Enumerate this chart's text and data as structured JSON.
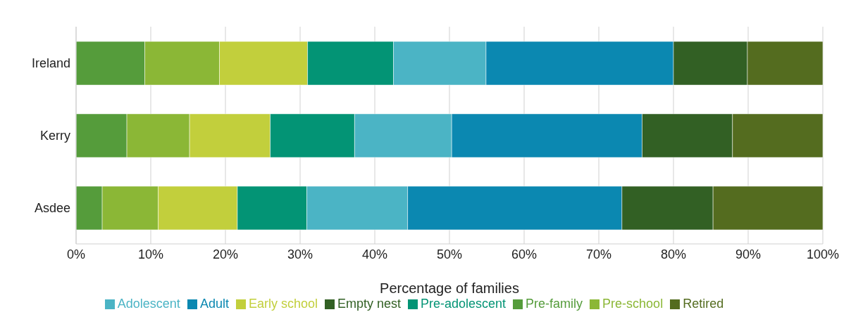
{
  "chart_data": {
    "type": "bar",
    "orientation": "horizontal",
    "stacked": true,
    "xlabel": "Percentage of families",
    "categories": [
      "Ireland",
      "Kerry",
      "Asdee"
    ],
    "series": [
      {
        "name": "Pre-family",
        "color": "#559c3b",
        "values": [
          9.2,
          6.8,
          3.5
        ]
      },
      {
        "name": "Pre-school",
        "color": "#8bb736",
        "values": [
          10.0,
          8.4,
          7.5
        ]
      },
      {
        "name": "Early school",
        "color": "#c2cf3c",
        "values": [
          11.8,
          10.8,
          10.6
        ]
      },
      {
        "name": "Pre-adolescent",
        "color": "#039475",
        "values": [
          11.5,
          11.3,
          9.3
        ]
      },
      {
        "name": "Adolescent",
        "color": "#4bb4c5",
        "values": [
          12.4,
          13.0,
          13.5
        ]
      },
      {
        "name": "Adult",
        "color": "#0b88b1",
        "values": [
          25.1,
          25.5,
          28.7
        ]
      },
      {
        "name": "Empty nest",
        "color": "#326024",
        "values": [
          9.9,
          12.1,
          12.2
        ]
      },
      {
        "name": "Retired",
        "color": "#546c1f",
        "values": [
          10.1,
          12.1,
          14.7
        ]
      }
    ],
    "xlim": [
      0,
      100
    ],
    "xticks": [
      {
        "value": 0,
        "label": "0%"
      },
      {
        "value": 10,
        "label": "10%"
      },
      {
        "value": 20,
        "label": "20%"
      },
      {
        "value": 30,
        "label": "30%"
      },
      {
        "value": 40,
        "label": "40%"
      },
      {
        "value": 50,
        "label": "50%"
      },
      {
        "value": 60,
        "label": "60%"
      },
      {
        "value": 70,
        "label": "70%"
      },
      {
        "value": 80,
        "label": "80%"
      },
      {
        "value": 90,
        "label": "90%"
      },
      {
        "value": 100,
        "label": "100%"
      }
    ],
    "grid": "x",
    "legend": "bottom"
  }
}
